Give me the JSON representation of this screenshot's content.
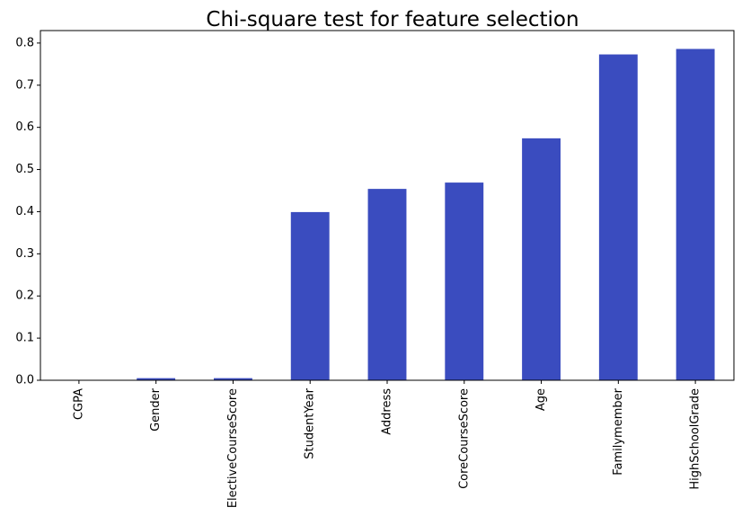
{
  "chart_data": {
    "type": "bar",
    "title": "Chi-square test for feature selection",
    "xlabel": "",
    "ylabel": "",
    "categories": [
      "CGPA",
      "Gender",
      "ElectiveCourseScore",
      "StudentYear",
      "Address",
      "CoreCourseScore",
      "Age",
      "Familymember",
      "HighSchoolGrade"
    ],
    "values": [
      0.0,
      0.005,
      0.005,
      0.399,
      0.454,
      0.469,
      0.574,
      0.773,
      0.786
    ],
    "ylim": [
      0,
      0.8296
    ],
    "yticks": [
      "0.0",
      "0.1",
      "0.2",
      "0.3",
      "0.4",
      "0.5",
      "0.6",
      "0.7",
      "0.8"
    ],
    "grid": false,
    "legend": "none",
    "colors": {
      "bar": "#3a4cbf",
      "axis": "#000000"
    }
  }
}
